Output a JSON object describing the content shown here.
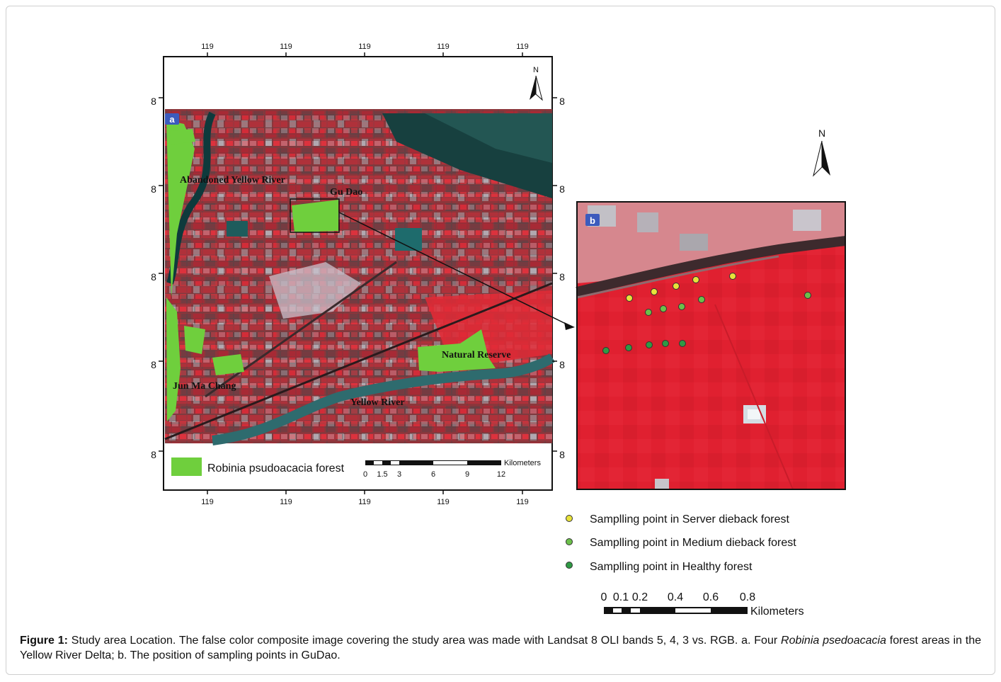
{
  "panel_a": {
    "label": "a",
    "top_ticks": [
      "119",
      "119",
      "119",
      "119",
      "119"
    ],
    "bottom_ticks": [
      "119",
      "119",
      "119",
      "119",
      "119"
    ],
    "left_ticks": [
      "8",
      "8",
      "8",
      "8",
      "8"
    ],
    "right_ticks": [
      "8",
      "8",
      "8",
      "8",
      "8"
    ],
    "north": "N",
    "place_labels": {
      "abandoned": "Abandoned Yellow River",
      "gudao": "Gu Dao",
      "natural": "Natural Reserve",
      "junmachang": "Jun Ma Chang",
      "yellowriver": "Yellow River"
    },
    "legend": {
      "label": "Robinia psudoacacia forest",
      "color": "#6fcf3d"
    },
    "scalebar": {
      "unit": "Kilometers",
      "ticks": [
        "0",
        "1.5",
        "3",
        "6",
        "9",
        "12"
      ]
    }
  },
  "panel_b": {
    "label": "b",
    "north": "N",
    "legend": [
      {
        "label": "Samplling point in Server dieback forest",
        "color": "#e8e23a"
      },
      {
        "label": "Samplling point in Medium dieback forest",
        "color": "#6cc04a"
      },
      {
        "label": "Samplling point in Healthy forest",
        "color": "#2f9a44"
      }
    ],
    "scalebar": {
      "unit": "Kilometers",
      "ticks": [
        "0",
        "0.1",
        "0.2",
        "0.4",
        "0.6",
        "0.8"
      ]
    }
  },
  "caption": {
    "label": "Figure 1:",
    "text1": " Study area Location. The false color composite image covering the study area was made with Landsat 8 OLI bands 5, 4, 3 vs. RGB. a. Four ",
    "italic": "Robinia psedoacacia",
    "text2": " forest areas in the Yellow River Delta; b. The position of sampling points in GuDao."
  }
}
